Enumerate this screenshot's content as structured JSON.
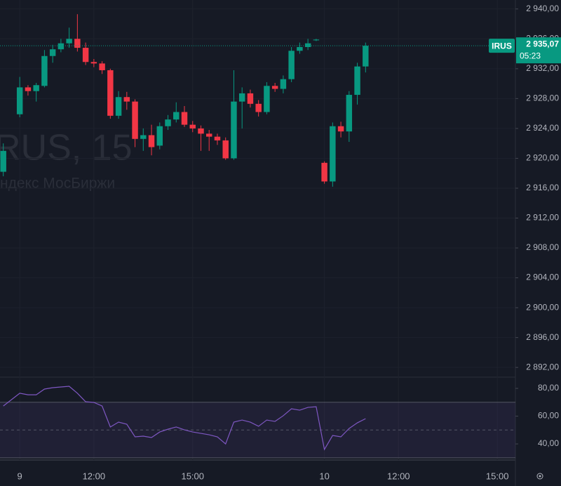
{
  "chart_data": [
    {
      "type": "candlestick",
      "watermark": "RUS, 15",
      "watermark_sub": "ндекс МосБиржи",
      "symbol_tag": "IRUS",
      "countdown": "05:23",
      "last_price": {
        "value": 2935.07,
        "label": "2 935,07"
      },
      "up_color": "#089981",
      "down_color": "#f23645",
      "x": [
        -2,
        0,
        1,
        2,
        3,
        4,
        5,
        6,
        7,
        8,
        9,
        10,
        11,
        12,
        13,
        14,
        15,
        16,
        17,
        18,
        19,
        20,
        21,
        22,
        23,
        24,
        25,
        26,
        27,
        28,
        29,
        30,
        31,
        32,
        33,
        34,
        35,
        36,
        37,
        38,
        39,
        40,
        41,
        42
      ],
      "open": [
        2918.2,
        2925.9,
        2929.5,
        2929.0,
        2929.7,
        2933.7,
        2934.6,
        2935.4,
        2936.0,
        2934.8,
        2932.9,
        2932.7,
        2931.8,
        2925.7,
        2928.2,
        2927.6,
        2922.6,
        2923.1,
        2921.7,
        2924.3,
        2925.2,
        2926.2,
        2924.5,
        2924.0,
        2923.3,
        2922.9,
        2922.4,
        2920.0,
        2927.6,
        2928.7,
        2927.3,
        2926.2,
        2929.7,
        2929.3,
        2930.6,
        2934.4,
        2934.9,
        2935.8,
        2919.4,
        2916.9,
        2924.3,
        2923.6,
        2928.5,
        2932.3
      ],
      "high": [
        2922.0,
        2930.9,
        2929.8,
        2930.1,
        2934.5,
        2935.2,
        2936.0,
        2937.5,
        2939.3,
        2935.5,
        2933.3,
        2933.0,
        2932.0,
        2929.0,
        2928.9,
        2927.9,
        2924.0,
        2924.5,
        2924.8,
        2925.8,
        2927.5,
        2927.0,
        2925.0,
        2924.4,
        2923.8,
        2923.3,
        2922.8,
        2931.8,
        2929.5,
        2929.2,
        2927.8,
        2930.2,
        2930.1,
        2931.1,
        2934.9,
        2935.5,
        2936.0,
        2936.0,
        2919.6,
        2924.8,
        2924.9,
        2929.0,
        2932.8,
        2935.5
      ],
      "low": [
        2917.6,
        2925.5,
        2928.4,
        2927.6,
        2929.5,
        2932.8,
        2934.2,
        2934.8,
        2934.3,
        2932.5,
        2932.2,
        2931.3,
        2925.3,
        2925.3,
        2926.5,
        2921.5,
        2921.0,
        2920.4,
        2921.2,
        2923.8,
        2924.8,
        2924.2,
        2923.5,
        2921.0,
        2921.0,
        2921.8,
        2919.8,
        2919.8,
        2924.0,
        2926.8,
        2925.6,
        2925.9,
        2928.9,
        2928.7,
        2930.2,
        2934.0,
        2934.5,
        2935.7,
        2916.6,
        2916.2,
        2922.8,
        2922.2,
        2927.2,
        2931.5
      ],
      "close": [
        2921.0,
        2929.5,
        2929.0,
        2929.8,
        2933.7,
        2934.6,
        2935.4,
        2936.0,
        2934.8,
        2932.9,
        2932.7,
        2931.8,
        2925.7,
        2928.2,
        2927.6,
        2922.6,
        2923.1,
        2921.5,
        2924.3,
        2925.2,
        2926.2,
        2924.5,
        2924.0,
        2923.3,
        2922.9,
        2922.4,
        2920.0,
        2927.6,
        2928.7,
        2927.3,
        2926.2,
        2929.7,
        2929.3,
        2930.6,
        2934.4,
        2934.9,
        2935.4,
        2935.9,
        2916.9,
        2924.3,
        2923.6,
        2928.5,
        2932.3,
        2935.07
      ],
      "xlim": [
        -2.4,
        60.2
      ],
      "xticks": [
        {
          "value": 0,
          "label": "9"
        },
        {
          "value": 9,
          "label": "12:00"
        },
        {
          "value": 21,
          "label": "15:00"
        },
        {
          "value": 37,
          "label": "10"
        },
        {
          "value": 46,
          "label": "12:00"
        },
        {
          "value": 58,
          "label": "15:00"
        }
      ],
      "ylim": [
        2890.7,
        2941.2
      ],
      "yticks": [
        {
          "value": 2940,
          "label": "2 940,00"
        },
        {
          "value": 2936,
          "label": "2 936,00"
        },
        {
          "value": 2932,
          "label": "2 932,00"
        },
        {
          "value": 2928,
          "label": "2 928,00"
        },
        {
          "value": 2924,
          "label": "2 924,00"
        },
        {
          "value": 2920,
          "label": "2 920,00"
        },
        {
          "value": 2916,
          "label": "2 916,00"
        },
        {
          "value": 2912,
          "label": "2 912,00"
        },
        {
          "value": 2908,
          "label": "2 908,00"
        },
        {
          "value": 2904,
          "label": "2 904,00"
        },
        {
          "value": 2900,
          "label": "2 900,00"
        },
        {
          "value": 2896,
          "label": "2 896,00"
        },
        {
          "value": 2892,
          "label": "2 892,00"
        }
      ],
      "grid": true
    },
    {
      "type": "line",
      "color": "#7e57c2",
      "x": [
        -2,
        0,
        1,
        2,
        3,
        4,
        5,
        6,
        7,
        8,
        9,
        10,
        11,
        12,
        13,
        14,
        15,
        16,
        17,
        18,
        19,
        20,
        21,
        22,
        23,
        24,
        25,
        26,
        27,
        28,
        29,
        30,
        31,
        32,
        33,
        34,
        35,
        36,
        37,
        38,
        39,
        40,
        41,
        42
      ],
      "values": [
        67.3,
        76.5,
        75.4,
        75.4,
        79.5,
        80.5,
        81.0,
        81.5,
        76.5,
        70.4,
        69.9,
        67.3,
        52.2,
        55.7,
        54.2,
        45.1,
        45.6,
        44.6,
        48.6,
        50.6,
        52.2,
        50.1,
        48.6,
        47.6,
        46.6,
        45.1,
        40.0,
        55.7,
        57.2,
        55.7,
        52.7,
        57.2,
        56.2,
        60.3,
        65.3,
        64.3,
        66.3,
        66.8,
        36.0,
        46.1,
        45.1,
        51.1,
        55.2,
        58.2
      ],
      "band": [
        30,
        70
      ],
      "midline": 50,
      "ylim": [
        28.4,
        88.1
      ],
      "yticks": [
        {
          "value": 80,
          "label": "80,00"
        },
        {
          "value": 60,
          "label": "60,00"
        },
        {
          "value": 40,
          "label": "40,00"
        }
      ]
    }
  ]
}
